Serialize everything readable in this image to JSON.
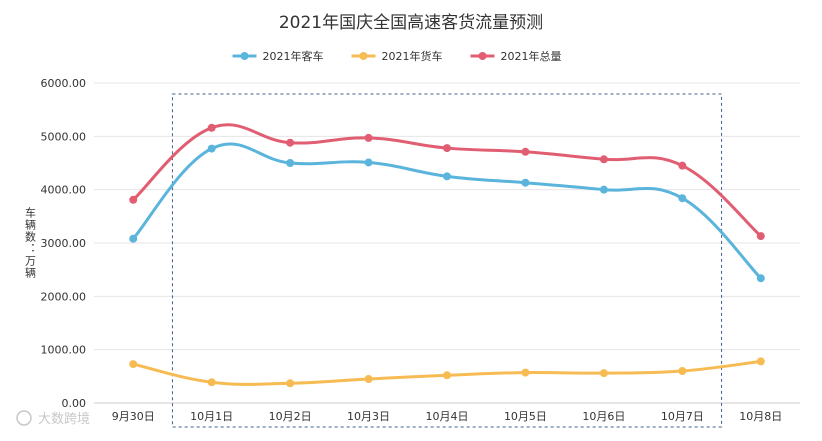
{
  "chart_data": {
    "type": "line",
    "title": "2021年国庆全国高速客货流量预测",
    "xlabel": "",
    "ylabel": "车辆数：万辆",
    "ylim": [
      0,
      6000
    ],
    "yticks": [
      "0.00",
      "1000.00",
      "2000.00",
      "3000.00",
      "4000.00",
      "5000.00",
      "6000.00"
    ],
    "categories": [
      "9月30日",
      "10月1日",
      "10月2日",
      "10月3日",
      "10月4日",
      "10月5日",
      "10月6日",
      "10月7日",
      "10月8日"
    ],
    "series": [
      {
        "name": "2021年客车",
        "color": "#5ab4dc",
        "values": [
          3080,
          4770,
          4500,
          4510,
          4250,
          4130,
          4000,
          3840,
          2340
        ]
      },
      {
        "name": "2021年货车",
        "color": "#f7bb53",
        "values": [
          730,
          390,
          370,
          450,
          520,
          570,
          560,
          600,
          780
        ]
      },
      {
        "name": "2021年总量",
        "color": "#e15d71",
        "values": [
          3810,
          5160,
          4880,
          4970,
          4780,
          4710,
          4570,
          4450,
          3130
        ]
      }
    ],
    "legend_position": "top-center",
    "highlight": "dashed box around 10月1日–10月7日",
    "watermark": "大数跨境"
  }
}
